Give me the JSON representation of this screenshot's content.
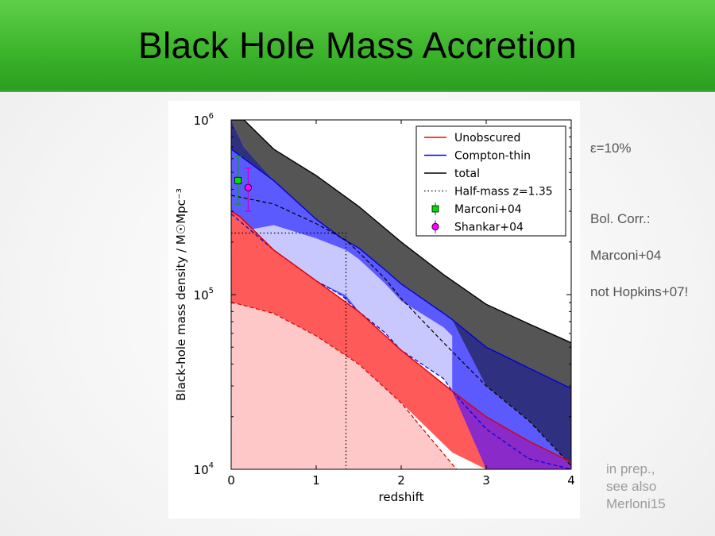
{
  "slide": {
    "title": "Black Hole Mass Accretion",
    "notes": [
      "ε=10%",
      "Bol. Corr.:",
      "Marconi+04",
      "not Hopkins+07!"
    ],
    "footnote": [
      "in prep.,",
      "see also",
      "Merloni15"
    ]
  },
  "chart_data": {
    "type": "area",
    "xlabel": "redshift",
    "ylabel": "Black-hole mass density / M☉Mpc⁻³",
    "xlim": [
      0,
      4
    ],
    "ylim": [
      10000,
      1000000
    ],
    "yscale": "log",
    "x_ticks": [
      "0",
      "1",
      "2",
      "3",
      "4"
    ],
    "y_ticks": [
      {
        "value": 10000,
        "base": "10",
        "exp": "4"
      },
      {
        "value": 100000,
        "base": "10",
        "exp": "5"
      },
      {
        "value": 1000000,
        "base": "10",
        "exp": "6"
      }
    ],
    "legend_position": "top-right",
    "bands": [
      {
        "key": "total",
        "fill": "#555555",
        "edge": "#000000",
        "x": [
          0,
          0.15,
          0.5,
          1,
          1.5,
          2,
          2.5,
          3,
          3.5,
          4
        ],
        "upper": [
          1000000,
          1000000,
          680000,
          480000,
          320000,
          200000,
          130000,
          88000,
          68000,
          53000
        ],
        "lower": [
          1000000,
          700000,
          450000,
          270000,
          170000,
          115000,
          78000,
          50000,
          38000,
          29000
        ]
      },
      {
        "key": "compton_thin",
        "fill": "#5a5aff",
        "overlap_fill": "#303080",
        "edge": "#0000dd",
        "x": [
          0,
          0.5,
          1,
          1.3,
          1.5,
          1.8,
          2,
          2.5,
          2.6,
          3,
          3.5,
          4
        ],
        "upper": [
          680000,
          450000,
          270000,
          210000,
          185000,
          140000,
          115000,
          78000,
          72000,
          50000,
          38000,
          29000
        ],
        "lower": [
          290000,
          180000,
          120000,
          99000,
          80000,
          61000,
          48000,
          33000,
          28000,
          17000,
          11500,
          10000
        ],
        "inner_dashed_x": [
          0,
          0.5,
          1,
          1.35,
          1.5,
          1.8,
          2,
          2.5,
          3,
          3.5,
          4
        ],
        "inner_dashed": [
          370000,
          330000,
          255000,
          205000,
          175000,
          125000,
          95000,
          53000,
          30000,
          19000,
          10500
        ]
      },
      {
        "key": "compton_thin_light",
        "fill": "#c8c8ff",
        "x": [
          0,
          0.5,
          1,
          1.35,
          1.5,
          1.8,
          2,
          2.5,
          2.6
        ],
        "upper": [
          225000,
          250000,
          210000,
          180000,
          160000,
          117000,
          92000,
          65000,
          58000
        ],
        "lower": [
          225000,
          180000,
          120000,
          99000,
          80000,
          61000,
          48000,
          33000,
          28000
        ]
      },
      {
        "key": "unobscured",
        "fill": "#ff5a5a",
        "edge": "#dd0000",
        "x": [
          0,
          0.1,
          0.5,
          1,
          1.5,
          2,
          2.6,
          3,
          3.5,
          4
        ],
        "upper": [
          300000,
          280000,
          180000,
          120000,
          80000,
          48000,
          28000,
          20000,
          14500,
          11000
        ],
        "lower": [
          90000,
          88000,
          78000,
          58000,
          40000,
          24000,
          12500,
          10000,
          10000,
          10000
        ],
        "overlap_fill": "#8a2ac8"
      },
      {
        "key": "unobscured_light",
        "fill": "#ffc8c8",
        "edge": "#dd0000",
        "x": [
          0,
          0.1,
          0.5,
          1,
          1.5,
          2,
          2.3,
          2.65
        ],
        "upper": [
          90000,
          88000,
          78000,
          58000,
          40000,
          24000,
          16000,
          10000
        ],
        "lower": [
          10000,
          10000,
          10000,
          10000,
          10000,
          10000,
          10000,
          10000
        ]
      }
    ],
    "half_mass": {
      "z": 1.35,
      "y": 225000
    },
    "series": [
      {
        "name": "Unobscured",
        "color": "#ff0000",
        "style": "line"
      },
      {
        "name": "Compton-thin",
        "color": "#0000ff",
        "style": "line"
      },
      {
        "name": "total",
        "color": "#000000",
        "style": "line"
      },
      {
        "name": "Half-mass z=1.35",
        "color": "#000000",
        "style": "dotted"
      },
      {
        "name": "Marconi+04",
        "color": "#00dd00",
        "style": "square",
        "x": 0.08,
        "y": 450000,
        "yerr_low": 330000,
        "yerr_high": 620000,
        "errcolor": "#00aa00"
      },
      {
        "name": "Shankar+04",
        "color": "#ff00ff",
        "style": "circle",
        "x": 0.2,
        "y": 410000,
        "yerr_low": 300000,
        "yerr_high": 530000,
        "errcolor": "#cc00cc"
      }
    ]
  }
}
